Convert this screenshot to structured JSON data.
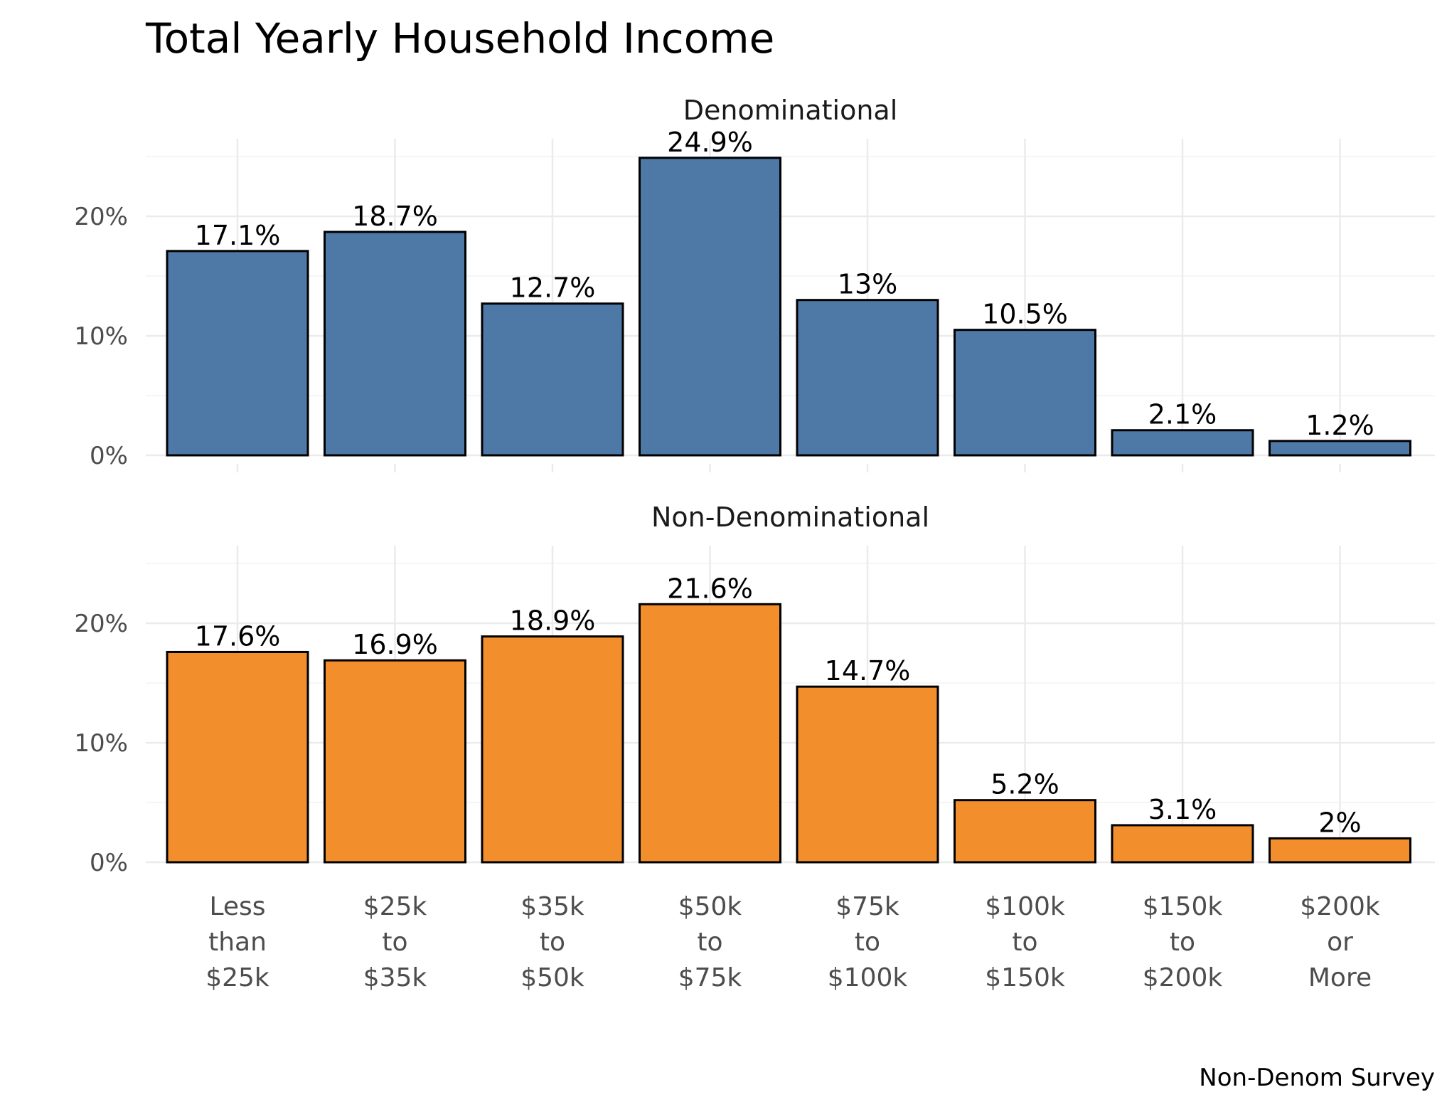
{
  "chart_data": {
    "type": "bar",
    "title": "Total Yearly Household Income",
    "caption": "Non-Denom Survey",
    "categories": [
      [
        "Less",
        "than",
        "$25k"
      ],
      [
        "$25k",
        "to",
        "$35k"
      ],
      [
        "$35k",
        "to",
        "$50k"
      ],
      [
        "$50k",
        "to",
        "$75k"
      ],
      [
        "$75k",
        "to",
        "$100k"
      ],
      [
        "$100k",
        "to",
        "$150k"
      ],
      [
        "$150k",
        "to",
        "$200k"
      ],
      [
        "$200k",
        "or",
        "More"
      ]
    ],
    "y_ticks": [
      0,
      10,
      20
    ],
    "y_tick_labels": [
      "0%",
      "10%",
      "20%"
    ],
    "ylim": [
      0,
      26.5
    ],
    "grid": true,
    "legend": "none",
    "facets": [
      {
        "name": "Denominational",
        "color": "#4e79a7",
        "values": [
          17.1,
          18.7,
          12.7,
          24.9,
          13,
          10.5,
          2.1,
          1.2
        ],
        "labels": [
          "17.1%",
          "18.7%",
          "12.7%",
          "24.9%",
          "13%",
          "10.5%",
          "2.1%",
          "1.2%"
        ]
      },
      {
        "name": "Non-Denominational",
        "color": "#f28e2b",
        "values": [
          17.6,
          16.9,
          18.9,
          21.6,
          14.7,
          5.2,
          3.1,
          2
        ],
        "labels": [
          "17.6%",
          "16.9%",
          "18.9%",
          "21.6%",
          "14.7%",
          "5.2%",
          "3.1%",
          "2%"
        ]
      }
    ]
  }
}
